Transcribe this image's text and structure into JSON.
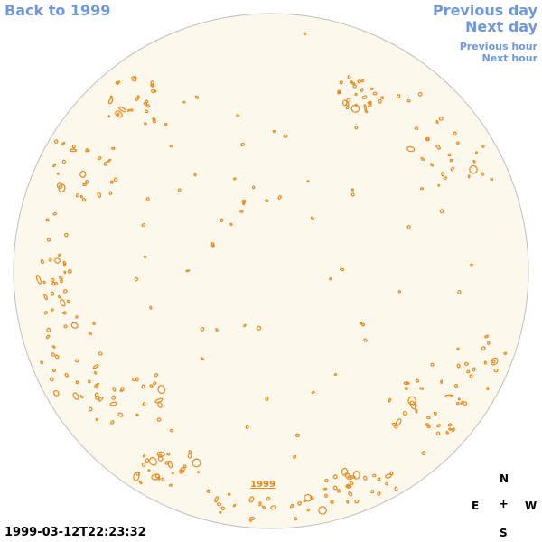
{
  "nav": {
    "back_label": "Back to 1999",
    "prev_day": "Previous day",
    "next_day": "Next day",
    "prev_hour": "Previous hour",
    "next_hour": "Next hour"
  },
  "disk": {
    "year_label": "1999",
    "fill_color": "#fdf8ec",
    "outline_color": "#bfbfbf",
    "contour_color": "#e8891a"
  },
  "timestamp": "1999-03-12T22:23:32",
  "compass": {
    "north": "N",
    "east": "E",
    "center": "+",
    "west": "W",
    "south": "S"
  }
}
